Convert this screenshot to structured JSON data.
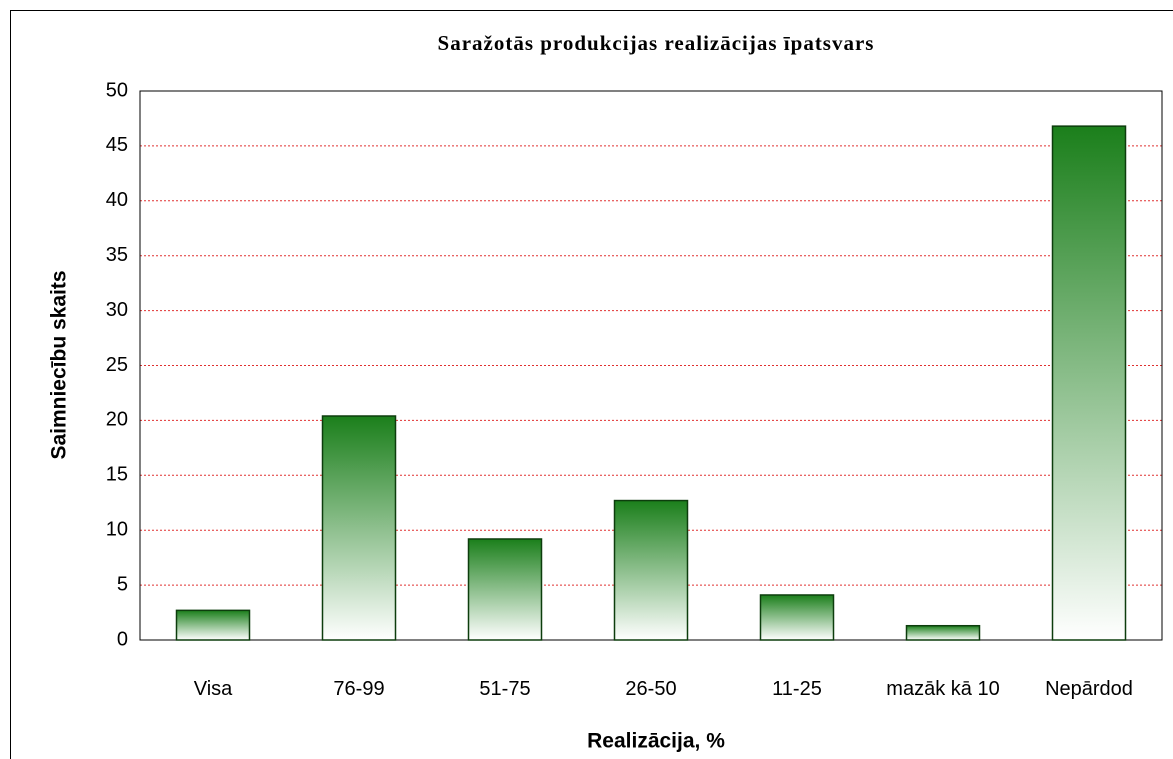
{
  "chart_data": {
    "type": "bar",
    "title": "Saražotās produkcijas realizācijas īpatsvars",
    "x_label": "Realizācija, %",
    "y_label": "Saimniecību skaits",
    "categories": [
      "Visa",
      "76-99",
      "51-75",
      "26-50",
      "11-25",
      "mazāk kā 10",
      "Nepārdod"
    ],
    "values": [
      2.7,
      20.4,
      9.2,
      12.7,
      4.1,
      1.3,
      46.8
    ],
    "color": "#1b7f1b",
    "ylim": [
      0,
      50
    ],
    "yticks": [
      0,
      5,
      10,
      15,
      20,
      25,
      30,
      35,
      40,
      45,
      50
    ],
    "grid": true
  }
}
